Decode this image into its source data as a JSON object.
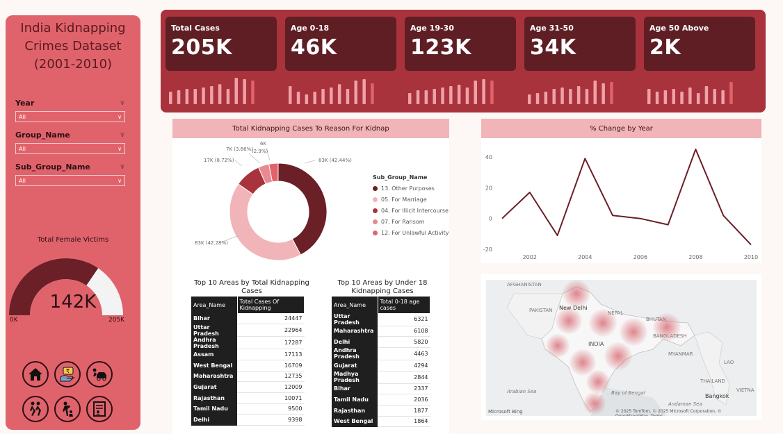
{
  "sidebar": {
    "title_lines": [
      "India Kidnapping",
      "Crimes Dataset",
      "(2001-2010)"
    ],
    "slicers": [
      {
        "label": "Year",
        "value": "All"
      },
      {
        "label": "Group_Name",
        "value": "All"
      },
      {
        "label": "Sub_Group_Name",
        "value": "All"
      }
    ],
    "gauge": {
      "title": "Total Female Victims",
      "value_label": "142K",
      "min": "0K",
      "max": "205K",
      "fraction": 0.69,
      "fill_color": "#6b1f26",
      "track_color": "#f3f3f3"
    },
    "nav_icons": [
      "home-icon",
      "rupee-hand-icon",
      "car-escape-icon",
      "running-people-icon",
      "rescue-icon",
      "report-icon"
    ]
  },
  "kpis": [
    {
      "label": "Total Cases",
      "value": "205K",
      "spark": [
        0.45,
        0.5,
        0.55,
        0.55,
        0.6,
        0.65,
        0.72,
        0.55,
        0.95,
        0.9,
        0.85
      ]
    },
    {
      "label": "Age 0-18",
      "value": "46K",
      "spark": [
        0.65,
        0.45,
        0.35,
        0.45,
        0.55,
        0.6,
        0.72,
        0.55,
        0.85,
        0.9,
        0.75
      ]
    },
    {
      "label": "Age 19-30",
      "value": "123K",
      "spark": [
        0.4,
        0.5,
        0.5,
        0.55,
        0.6,
        0.65,
        0.7,
        0.6,
        0.85,
        0.9,
        0.85
      ]
    },
    {
      "label": "Age 31-50",
      "value": "34K",
      "spark": [
        0.35,
        0.4,
        0.45,
        0.55,
        0.6,
        0.55,
        0.65,
        0.55,
        0.85,
        0.75,
        0.8
      ]
    },
    {
      "label": "Age 50 Above",
      "value": "2K",
      "spark": [
        0.55,
        0.45,
        0.5,
        0.55,
        0.45,
        0.6,
        0.4,
        0.65,
        0.55,
        0.5,
        0.8
      ]
    }
  ],
  "colors": {
    "accent": "#a8333c",
    "kpi_tile": "#5e1e24",
    "spark": "#f1a0a7",
    "spark_hi": "#e0636c",
    "panel_head": "#f1b4b9",
    "line": "#6b1f26"
  },
  "donut": {
    "title": "Total Kidnapping Cases To Reason For Kidnap",
    "legend_title": "Sub_Group_Name",
    "slices": [
      {
        "name": "13. Other Purposes",
        "value": 83,
        "label": "83K (42.44%)",
        "color": "#6b1f26"
      },
      {
        "name": "05. For Marriage",
        "value": 83,
        "label": "83K (42.28%)",
        "color": "#f1b4b9"
      },
      {
        "name": "04. For Illicit Intercourse",
        "value": 17,
        "label": "17K (8.72%)",
        "color": "#a8333c"
      },
      {
        "name": "07. For Ransom",
        "value": 7,
        "label": "7K (3.66%)",
        "color": "#e88a92"
      },
      {
        "name": "12. For Unlawful Activity",
        "value": 6,
        "label": "6K",
        "color": "#e0636c"
      }
    ],
    "extra_label": "(2.9%)"
  },
  "chart_data": {
    "type": "line",
    "title": "% Change by Year",
    "x": [
      2001,
      2002,
      2003,
      2004,
      2005,
      2006,
      2007,
      2008,
      2009,
      2010
    ],
    "values": [
      0,
      17,
      -11,
      39,
      2,
      0,
      -4,
      45,
      2,
      -17
    ],
    "x_ticks": [
      "2002",
      "2004",
      "2006",
      "2008",
      "2010"
    ],
    "y_ticks": [
      "40",
      "20",
      "0",
      "-20"
    ],
    "ylim": [
      -20,
      45
    ],
    "grid": false
  },
  "table_total": {
    "title_lines": [
      "Top 10 Areas by Total Kidnapping",
      "Cases"
    ],
    "headers": [
      "Area_Name",
      "Total Cases Of Kidnapping"
    ],
    "rows": [
      [
        "Bihar",
        "24447"
      ],
      [
        "Uttar Pradesh",
        "22964"
      ],
      [
        "Andhra Pradesh",
        "17287"
      ],
      [
        "Assam",
        "17113"
      ],
      [
        "West Bengal",
        "16709"
      ],
      [
        "Maharashtra",
        "12735"
      ],
      [
        "Gujarat",
        "12009"
      ],
      [
        "Rajasthan",
        "10071"
      ],
      [
        "Tamil Nadu",
        "9500"
      ],
      [
        "Delhi",
        "9398"
      ]
    ]
  },
  "table_u18": {
    "title_lines": [
      "Top 10 Areas by Under 18",
      "Kidnapping Cases"
    ],
    "headers": [
      "Area_Name",
      "Total 0-18 age cases"
    ],
    "rows": [
      [
        "Uttar Pradesh",
        "6321"
      ],
      [
        "Maharashtra",
        "6108"
      ],
      [
        "Delhi",
        "5820"
      ],
      [
        "Andhra Pradesh",
        "4463"
      ],
      [
        "Gujarat",
        "4294"
      ],
      [
        "Madhya Pradesh",
        "2844"
      ],
      [
        "Bihar",
        "2337"
      ],
      [
        "Tamil Nadu",
        "2036"
      ],
      [
        "Rajasthan",
        "1877"
      ],
      [
        "West Bengal",
        "1864"
      ]
    ]
  },
  "map": {
    "labels": [
      "AFGHANISTAN",
      "PAKISTAN",
      "New Delhi",
      "NEPAL",
      "BHUTAN",
      "BANGLADESH",
      "INDIA",
      "MYANMAR",
      "THAILAND",
      "Bangkok",
      "VIETNA",
      "LAO",
      "Arabian Sea",
      "Bay of Bengal",
      "Andaman Sea"
    ],
    "footer": "© 2025 TomTom, © 2025 Microsoft Corporation, © OpenStreetMap, Terms",
    "brand": "Microsoft Bing"
  }
}
